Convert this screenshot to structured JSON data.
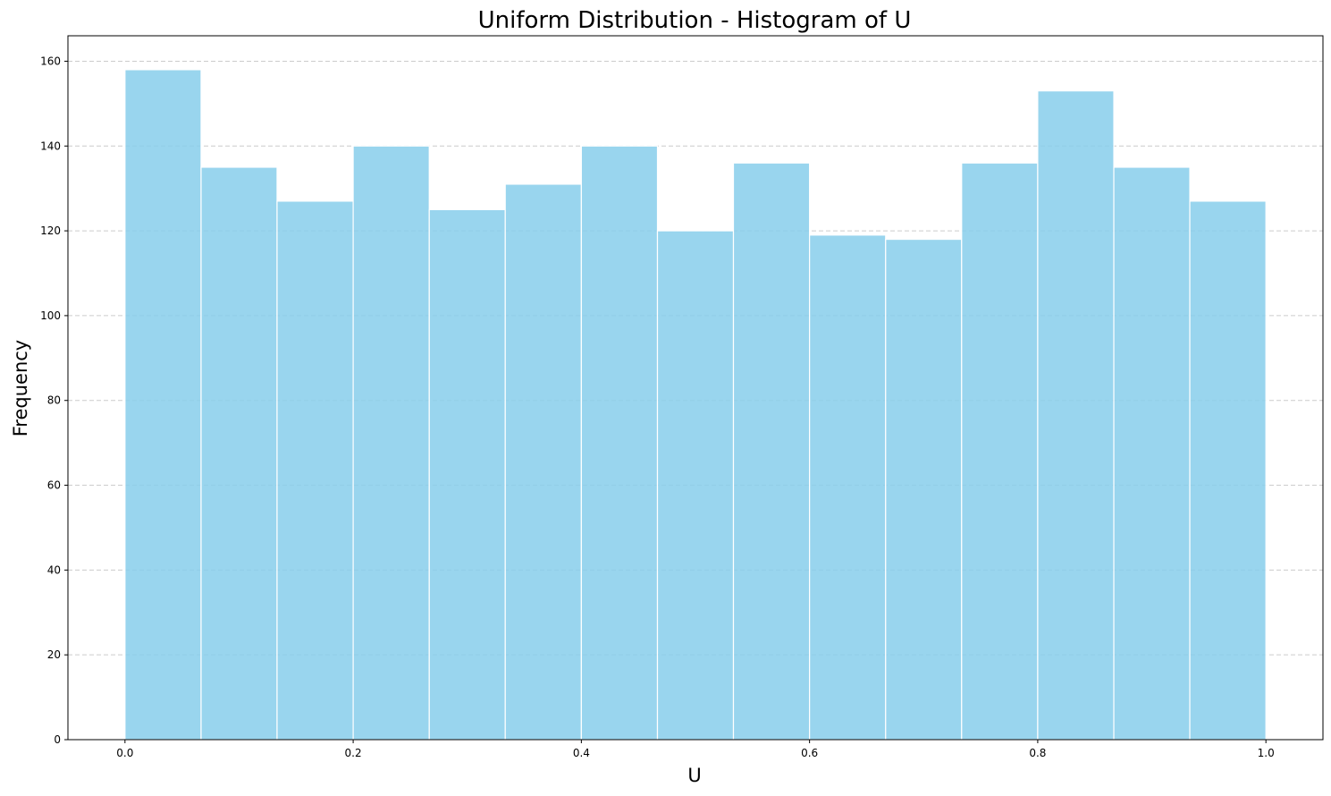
{
  "chart_data": {
    "type": "bar",
    "title": "Uniform Distribution - Histogram of U",
    "xlabel": "U",
    "ylabel": "Frequency",
    "bin_edges": [
      0.0,
      0.0667,
      0.1333,
      0.2,
      0.2667,
      0.3333,
      0.4,
      0.4667,
      0.5333,
      0.6,
      0.6667,
      0.7333,
      0.8,
      0.8667,
      0.9333,
      1.0
    ],
    "values": [
      158,
      135,
      127,
      140,
      125,
      131,
      140,
      120,
      136,
      119,
      118,
      136,
      153,
      135,
      127
    ],
    "xlim": [
      -0.05,
      1.05
    ],
    "ylim": [
      0,
      166
    ],
    "xticks": [
      "0.0",
      "0.2",
      "0.4",
      "0.6",
      "0.8",
      "1.0"
    ],
    "yticks": [
      "0",
      "20",
      "40",
      "60",
      "80",
      "100",
      "120",
      "140",
      "160"
    ],
    "grid": "horizontal dashed",
    "colors": {
      "bar": "#87CEEB",
      "edge": "#ffffff",
      "grid": "#cccccc"
    }
  }
}
